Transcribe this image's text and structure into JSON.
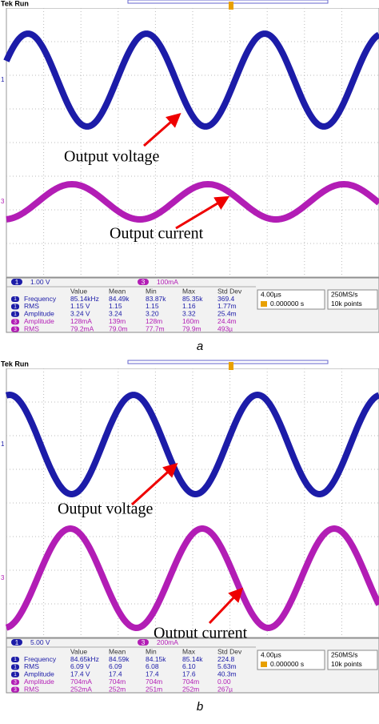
{
  "panels": [
    {
      "header": "Tek Run",
      "voltage_label": "Output voltage",
      "current_label": "Output current",
      "channels": [
        {
          "marker": "1",
          "scale": "1.00 V"
        },
        {
          "marker": "3",
          "scale": "100mA"
        }
      ],
      "columns": [
        "Value",
        "Mean",
        "Min",
        "Max",
        "Std Dev"
      ],
      "rows": [
        [
          "1",
          "Frequency",
          "85.14kHz",
          "84.49k",
          "83.87k",
          "85.35k",
          "369.4"
        ],
        [
          "1",
          "RMS",
          "1.15 V",
          "1.15",
          "1.15",
          "1.16",
          "1.77m"
        ],
        [
          "1",
          "Amplitude",
          "3.24 V",
          "3.24",
          "3.20",
          "3.32",
          "25.4m"
        ],
        [
          "3",
          "Amplitude",
          "128mA",
          "139m",
          "128m",
          "160m",
          "24.4m"
        ],
        [
          "3",
          "RMS",
          "79.2mA",
          "79.0m",
          "77.7m",
          "79.9m",
          "493µ"
        ]
      ],
      "timebase": "4.00µs",
      "trigger": "0.000000 s",
      "sample_rate": "250MS/s",
      "record_length": "10k points",
      "caption": "a"
    },
    {
      "header": "Tek Run",
      "voltage_label": "Output voltage",
      "current_label": "Output current",
      "channels": [
        {
          "marker": "1",
          "scale": "5.00 V"
        },
        {
          "marker": "3",
          "scale": "200mA"
        }
      ],
      "columns": [
        "Value",
        "Mean",
        "Min",
        "Max",
        "Std Dev"
      ],
      "rows": [
        [
          "1",
          "Frequency",
          "84.65kHz",
          "84.59k",
          "84.15k",
          "85.14k",
          "224.8"
        ],
        [
          "1",
          "RMS",
          "6.09 V",
          "6.09",
          "6.08",
          "6.10",
          "5.63m"
        ],
        [
          "1",
          "Amplitude",
          "17.4 V",
          "17.4",
          "17.4",
          "17.6",
          "40.3m"
        ],
        [
          "3",
          "Amplitude",
          "704mA",
          "704m",
          "704m",
          "704m",
          "0.00"
        ],
        [
          "3",
          "RMS",
          "252mA",
          "252m",
          "251m",
          "252m",
          "267µ"
        ]
      ],
      "timebase": "4.00µs",
      "trigger": "0.000000 s",
      "sample_rate": "250MS/s",
      "record_length": "10k points",
      "caption": "b"
    }
  ]
}
